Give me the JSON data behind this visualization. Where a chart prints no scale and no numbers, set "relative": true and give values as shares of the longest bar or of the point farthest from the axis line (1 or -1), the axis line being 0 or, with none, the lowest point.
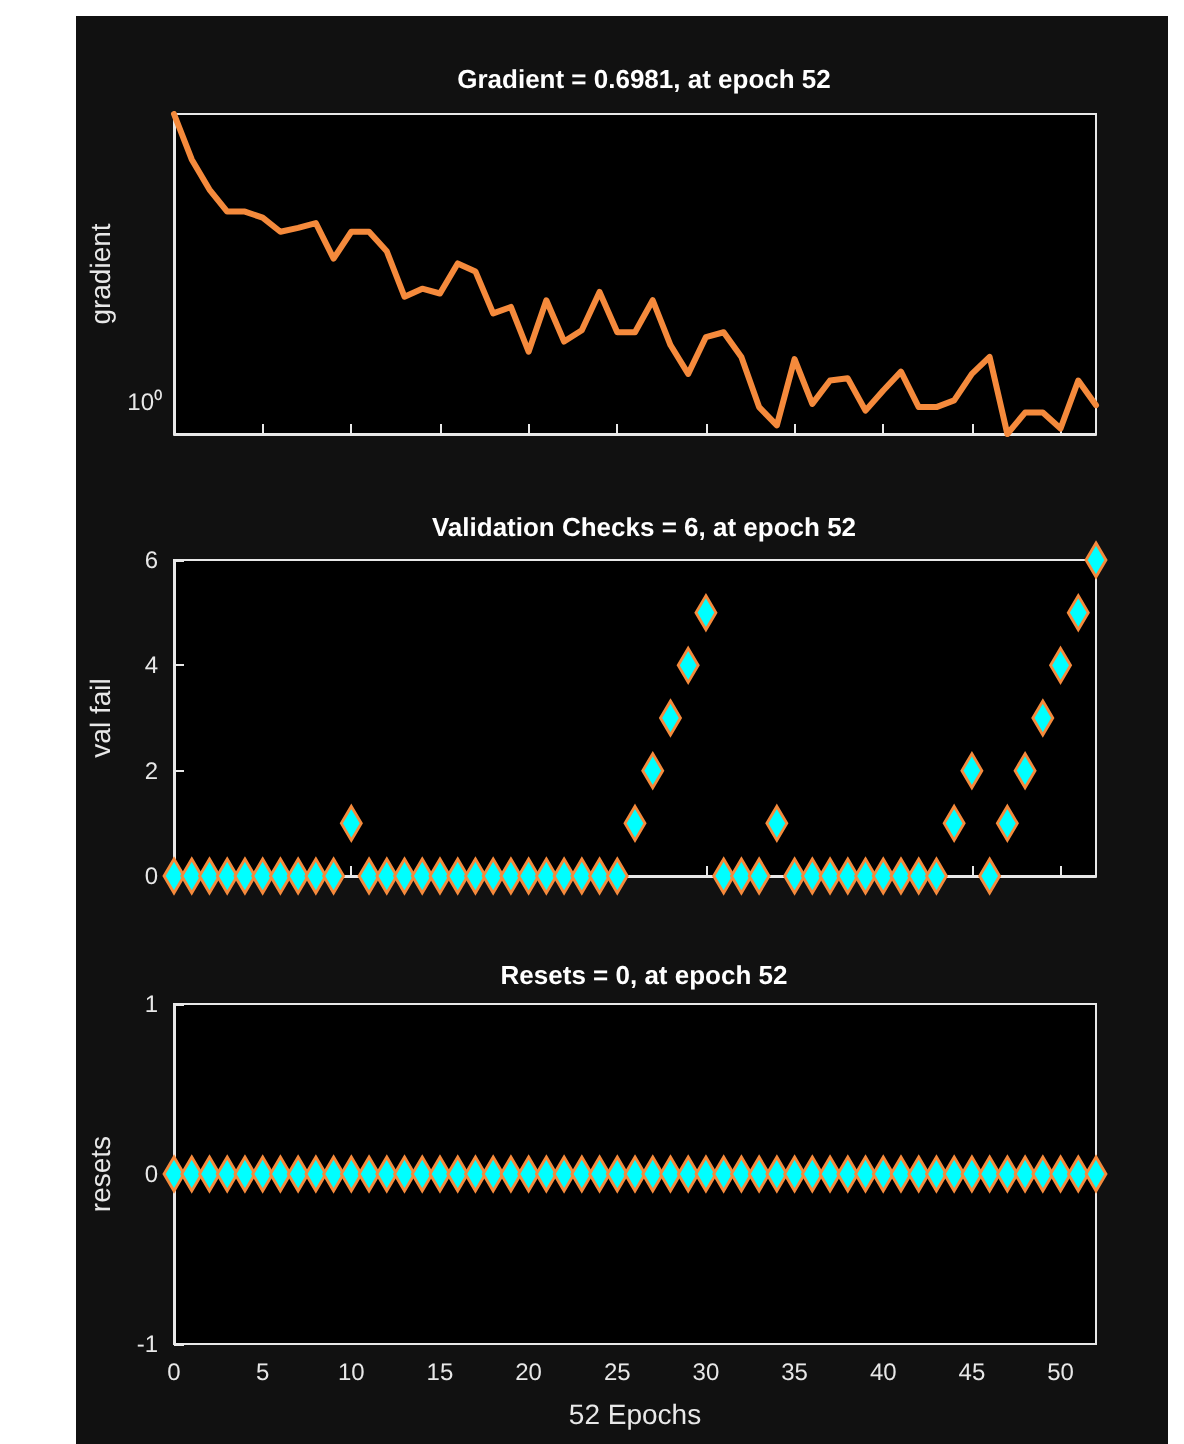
{
  "chart_data": [
    {
      "type": "line",
      "title": "Gradient = 0.6981, at epoch 52",
      "ylabel": "gradient",
      "color": "#f58a3c",
      "relative": true,
      "annotations": [
        "10⁰"
      ],
      "x": [
        0,
        1,
        2,
        3,
        4,
        5,
        6,
        7,
        8,
        9,
        10,
        11,
        12,
        13,
        14,
        15,
        16,
        17,
        18,
        19,
        20,
        21,
        22,
        23,
        24,
        25,
        26,
        27,
        28,
        29,
        30,
        31,
        32,
        33,
        34,
        35,
        36,
        37,
        38,
        39,
        40,
        41,
        42,
        43,
        44,
        45,
        46,
        47,
        48,
        49,
        50,
        51,
        52
      ],
      "values": [
        1,
        0.858,
        0.764,
        0.695,
        0.695,
        0.676,
        0.632,
        0.644,
        0.659,
        0.548,
        0.632,
        0.632,
        0.571,
        0.429,
        0.454,
        0.439,
        0.533,
        0.508,
        0.377,
        0.397,
        0.257,
        0.418,
        0.289,
        0.324,
        0.444,
        0.318,
        0.318,
        0.418,
        0.278,
        0.188,
        0.303,
        0.318,
        0.241,
        0.084,
        0.027,
        0.234,
        0.094,
        0.167,
        0.174,
        0.073,
        0.136,
        0.195,
        0.084,
        0.084,
        0.105,
        0.188,
        0.241,
        0,
        0.067,
        0.067,
        0.017,
        0.167,
        0.09
      ],
      "xlim": [
        0,
        52
      ],
      "xticks": [
        {
          "value": 0,
          "label": null
        },
        {
          "value": 5,
          "label": null
        },
        {
          "value": 10,
          "label": null
        },
        {
          "value": 15,
          "label": null
        },
        {
          "value": 20,
          "label": null
        },
        {
          "value": 25,
          "label": null
        },
        {
          "value": 30,
          "label": null
        },
        {
          "value": 35,
          "label": null
        },
        {
          "value": 40,
          "label": null
        },
        {
          "value": 45,
          "label": null
        },
        {
          "value": 50,
          "label": null
        }
      ],
      "tick_labels": false
    },
    {
      "type": "scatter",
      "title": "Validation Checks = 6, at epoch 52",
      "ylabel": "val fail",
      "color": "#00ffff",
      "marker": "diamond",
      "x": [
        0,
        1,
        2,
        3,
        4,
        5,
        6,
        7,
        8,
        9,
        10,
        11,
        12,
        13,
        14,
        15,
        16,
        17,
        18,
        19,
        20,
        21,
        22,
        23,
        24,
        25,
        26,
        27,
        28,
        29,
        30,
        31,
        32,
        33,
        34,
        35,
        36,
        37,
        38,
        39,
        40,
        41,
        42,
        43,
        44,
        45,
        46,
        47,
        48,
        49,
        50,
        51,
        52
      ],
      "values": [
        0,
        0,
        0,
        0,
        0,
        0,
        0,
        0,
        0,
        0,
        1,
        0,
        0,
        0,
        0,
        0,
        0,
        0,
        0,
        0,
        0,
        0,
        0,
        0,
        0,
        0,
        1,
        2,
        3,
        4,
        5,
        0,
        0,
        0,
        1,
        0,
        0,
        0,
        0,
        0,
        0,
        0,
        0,
        0,
        1,
        2,
        0,
        1,
        2,
        3,
        4,
        5,
        6
      ],
      "xlim": [
        0,
        52
      ],
      "xticks": [
        {
          "value": 0,
          "label": null
        },
        {
          "value": 5,
          "label": null
        },
        {
          "value": 10,
          "label": null
        },
        {
          "value": 15,
          "label": null
        },
        {
          "value": 20,
          "label": null
        },
        {
          "value": 25,
          "label": null
        },
        {
          "value": 30,
          "label": null
        },
        {
          "value": 35,
          "label": null
        },
        {
          "value": 40,
          "label": null
        },
        {
          "value": 45,
          "label": null
        },
        {
          "value": 50,
          "label": null
        }
      ],
      "ylim": [
        0,
        6
      ],
      "yticks": [
        0,
        2,
        4,
        6
      ],
      "tick_labels": "y"
    },
    {
      "type": "scatter",
      "title": "Resets = 0, at epoch 52",
      "xlabel": "52 Epochs",
      "ylabel": "resets",
      "color": "#00ffff",
      "marker": "diamond",
      "x": [
        0,
        1,
        2,
        3,
        4,
        5,
        6,
        7,
        8,
        9,
        10,
        11,
        12,
        13,
        14,
        15,
        16,
        17,
        18,
        19,
        20,
        21,
        22,
        23,
        24,
        25,
        26,
        27,
        28,
        29,
        30,
        31,
        32,
        33,
        34,
        35,
        36,
        37,
        38,
        39,
        40,
        41,
        42,
        43,
        44,
        45,
        46,
        47,
        48,
        49,
        50,
        51,
        52
      ],
      "values": [
        0,
        0,
        0,
        0,
        0,
        0,
        0,
        0,
        0,
        0,
        0,
        0,
        0,
        0,
        0,
        0,
        0,
        0,
        0,
        0,
        0,
        0,
        0,
        0,
        0,
        0,
        0,
        0,
        0,
        0,
        0,
        0,
        0,
        0,
        0,
        0,
        0,
        0,
        0,
        0,
        0,
        0,
        0,
        0,
        0,
        0,
        0,
        0,
        0,
        0,
        0,
        0,
        0
      ],
      "xlim": [
        0,
        52
      ],
      "xticks": [
        0,
        5,
        10,
        15,
        20,
        25,
        30,
        35,
        40,
        45,
        50
      ],
      "ylim": [
        -1,
        1
      ],
      "yticks": [
        -1,
        0,
        1
      ]
    }
  ]
}
